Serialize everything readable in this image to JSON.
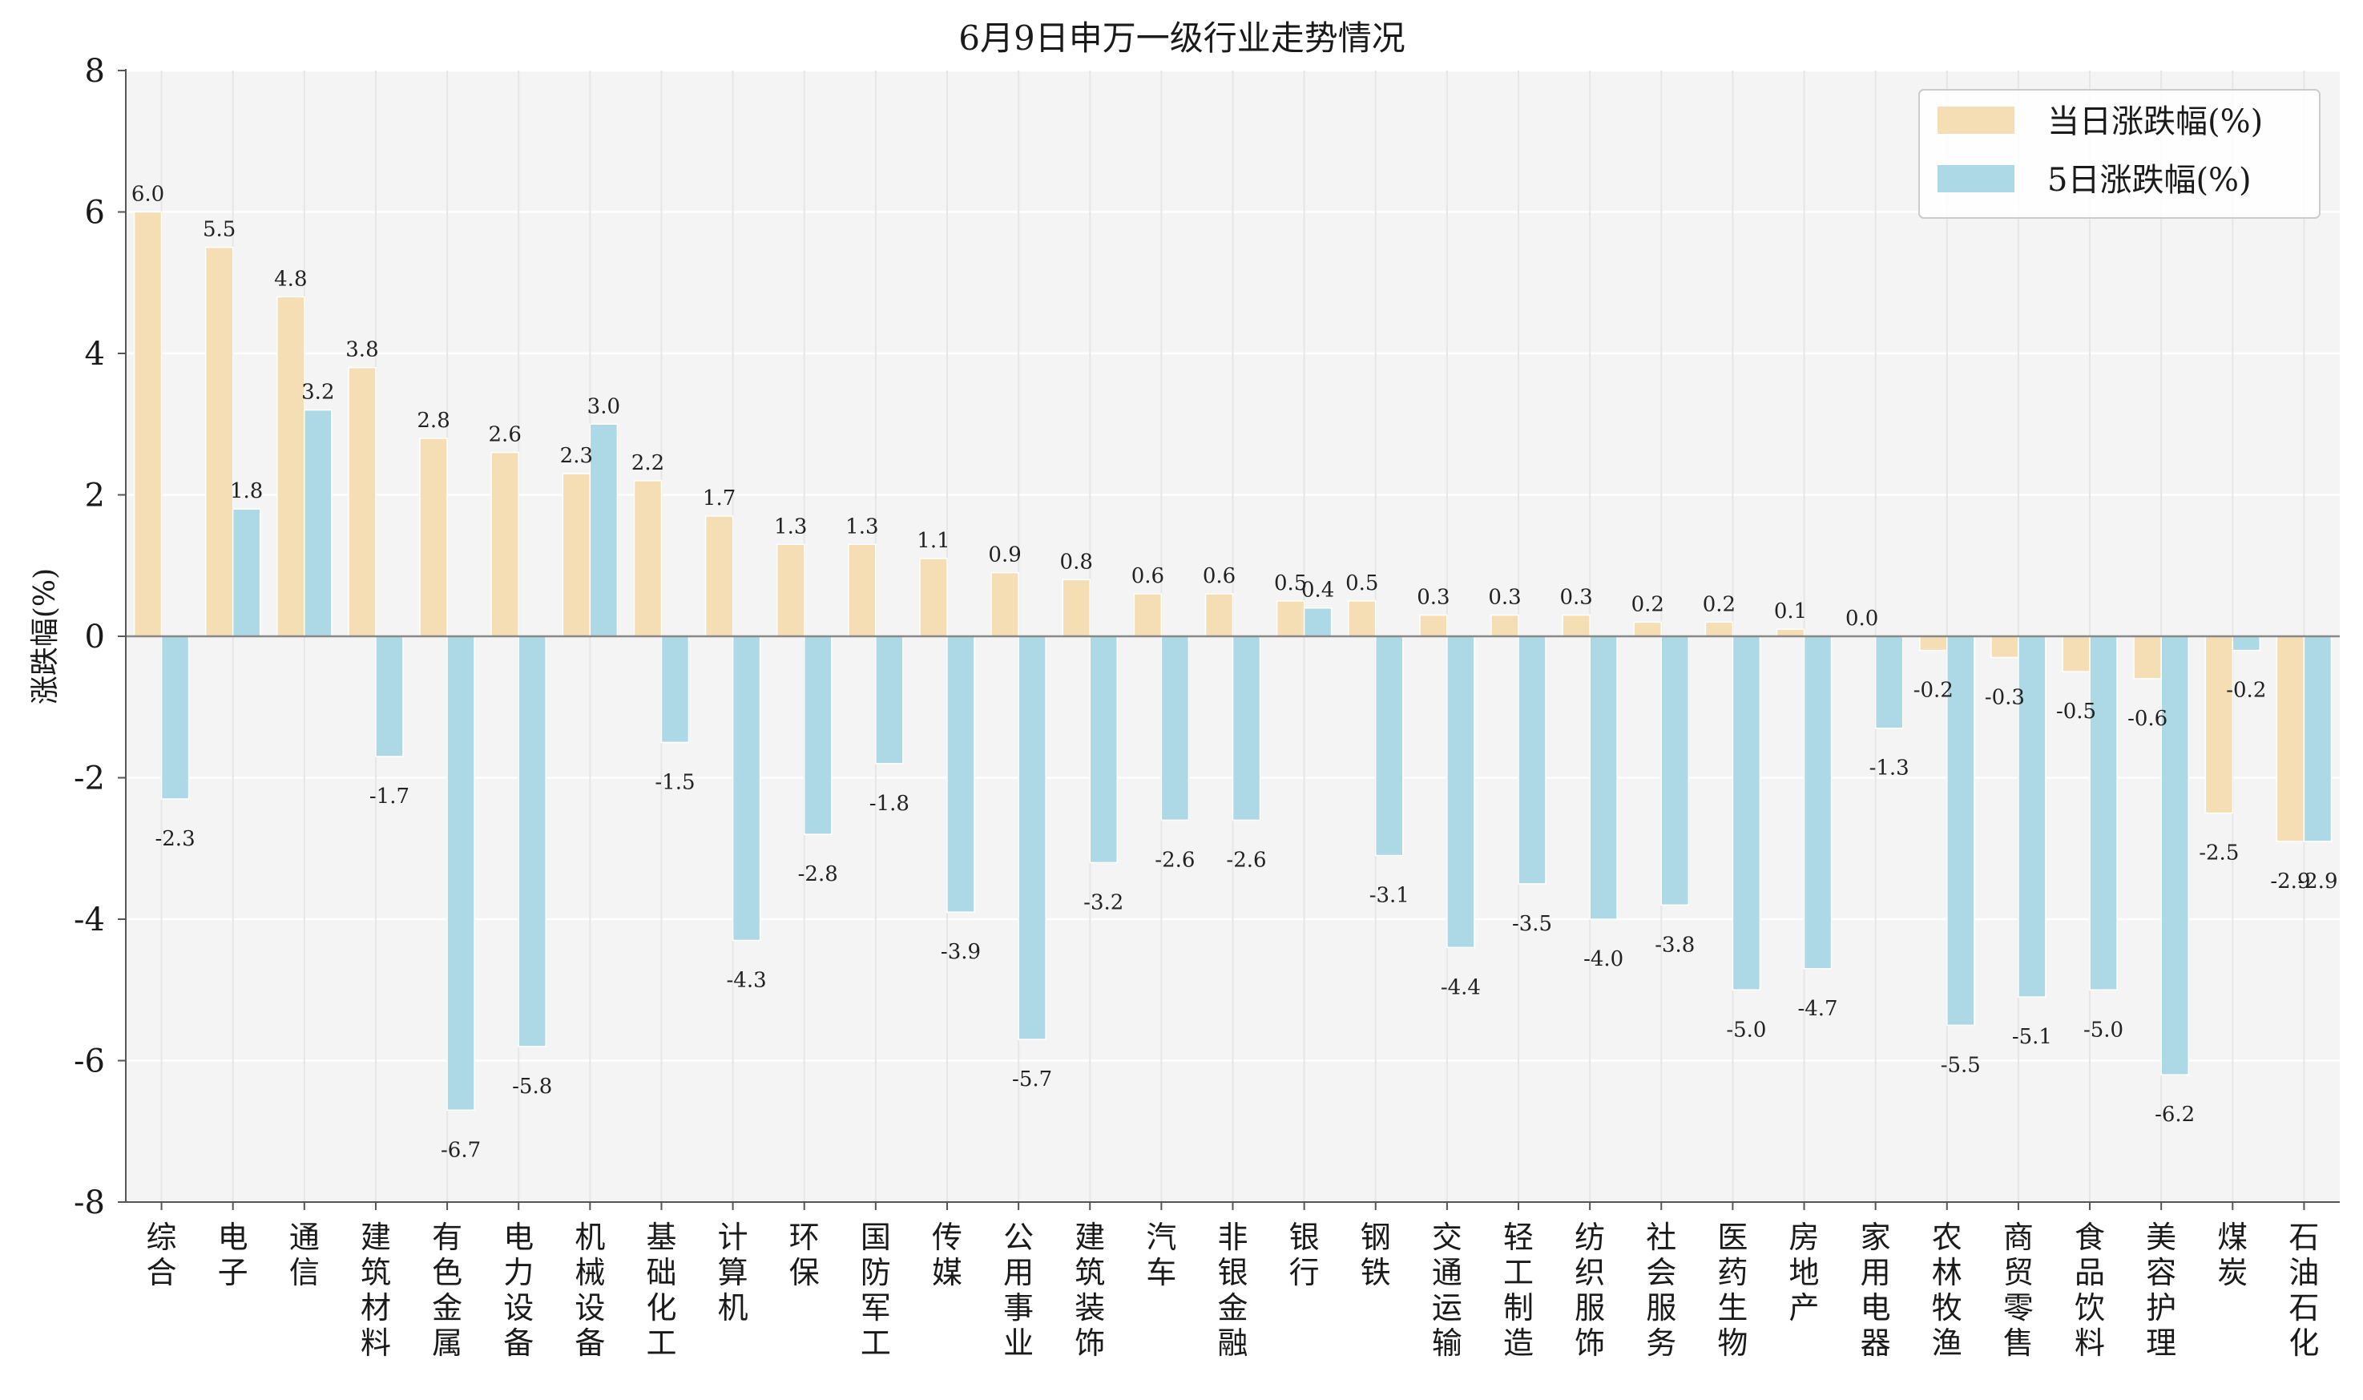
{
  "chart_data": {
    "type": "bar",
    "title": "6月9日申万一级行业走势情况",
    "xlabel": "",
    "ylabel": "涨跌幅(%)",
    "ylim": [
      -8,
      8
    ],
    "yticks": [
      8,
      6,
      4,
      2,
      0,
      -2,
      -4,
      -6,
      -8
    ],
    "grid": true,
    "legend_position": "top-right",
    "categories": [
      "综合",
      "电子",
      "通信",
      "建筑材料",
      "有色金属",
      "电力设备",
      "机械设备",
      "基础化工",
      "计算机",
      "环保",
      "国防军工",
      "传媒",
      "公用事业",
      "建筑装饰",
      "汽车",
      "非银金融",
      "银行",
      "钢铁",
      "交通运输",
      "轻工制造",
      "纺织服饰",
      "社会服务",
      "医药生物",
      "房地产",
      "家用电器",
      "农林牧渔",
      "商贸零售",
      "食品饮料",
      "美容护理",
      "煤炭",
      "石油石化"
    ],
    "series": [
      {
        "name": "当日涨跌幅(%)",
        "color": "#f5deb3",
        "values": [
          6.0,
          5.5,
          4.8,
          3.8,
          2.8,
          2.6,
          2.3,
          2.2,
          1.7,
          1.3,
          1.3,
          1.1,
          0.9,
          0.8,
          0.6,
          0.6,
          0.5,
          0.5,
          0.3,
          0.3,
          0.3,
          0.2,
          0.2,
          0.1,
          0.0,
          -0.2,
          -0.3,
          -0.5,
          -0.6,
          -2.5,
          -2.9
        ]
      },
      {
        "name": "5日涨跌幅(%)",
        "color": "#add8e6",
        "values": [
          -2.3,
          1.8,
          3.2,
          -1.7,
          -6.7,
          -5.8,
          3.0,
          -1.5,
          -4.3,
          -2.8,
          -1.8,
          -3.9,
          -5.7,
          -3.2,
          -2.6,
          -2.6,
          0.4,
          -3.1,
          -4.4,
          -3.5,
          -4.0,
          -3.8,
          -5.0,
          -4.7,
          -1.3,
          -5.5,
          -5.1,
          -5.0,
          -6.2,
          -0.2,
          -2.9
        ]
      }
    ]
  }
}
